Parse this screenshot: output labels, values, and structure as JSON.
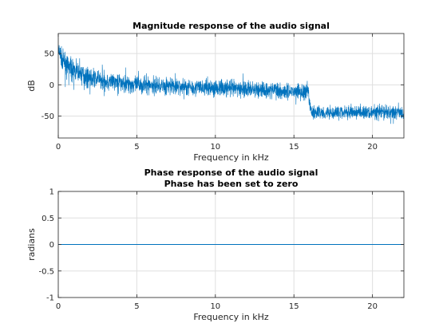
{
  "chart_data": [
    {
      "type": "line",
      "title": "Magnitude response of the audio signal",
      "xlabel": "Frequency in kHz",
      "ylabel": "dB",
      "xlim": [
        0,
        22
      ],
      "ylim": [
        -85,
        82
      ],
      "xticks": [
        0,
        5,
        10,
        15,
        20
      ],
      "xtick_labels": [
        "0",
        "5",
        "10",
        "15",
        "20"
      ],
      "yticks": [
        50,
        0,
        -50
      ],
      "ytick_labels": [
        "50",
        "0",
        "-50"
      ],
      "grid": true,
      "series_color": "#0072BD",
      "series": [
        {
          "description_points": true,
          "x": [
            0.0,
            0.1,
            0.25,
            0.5,
            1.0,
            2.0,
            3.0,
            5.0,
            8.0,
            10.0,
            12.0,
            15.0,
            15.9,
            16.1,
            18.0,
            20.0,
            22.0
          ],
          "center": [
            52,
            50,
            40,
            32,
            22,
            12,
            6,
            0,
            -3,
            -5,
            -7,
            -10,
            -12,
            -44,
            -44,
            -44,
            -44
          ],
          "spread": [
            25,
            24,
            24,
            24,
            23,
            22,
            22,
            21,
            20,
            20,
            20,
            20,
            20,
            16,
            16,
            16,
            16
          ]
        }
      ]
    },
    {
      "type": "line",
      "title": "Phase response of the audio signal",
      "subtitle": "Phase has been set to zero",
      "xlabel": "Frequency in kHz",
      "ylabel": "radians",
      "xlim": [
        0,
        22
      ],
      "ylim": [
        -1,
        1
      ],
      "xticks": [
        0,
        5,
        10,
        15,
        20
      ],
      "xtick_labels": [
        "0",
        "5",
        "10",
        "15",
        "20"
      ],
      "yticks": [
        1,
        0.5,
        0,
        -0.5,
        -1
      ],
      "ytick_labels": [
        "1",
        "0.5",
        "0",
        "-0.5",
        "-1"
      ],
      "grid": true,
      "series_color": "#0072BD",
      "series": [
        {
          "x": [
            0,
            22
          ],
          "y": [
            0,
            0
          ]
        }
      ]
    }
  ]
}
